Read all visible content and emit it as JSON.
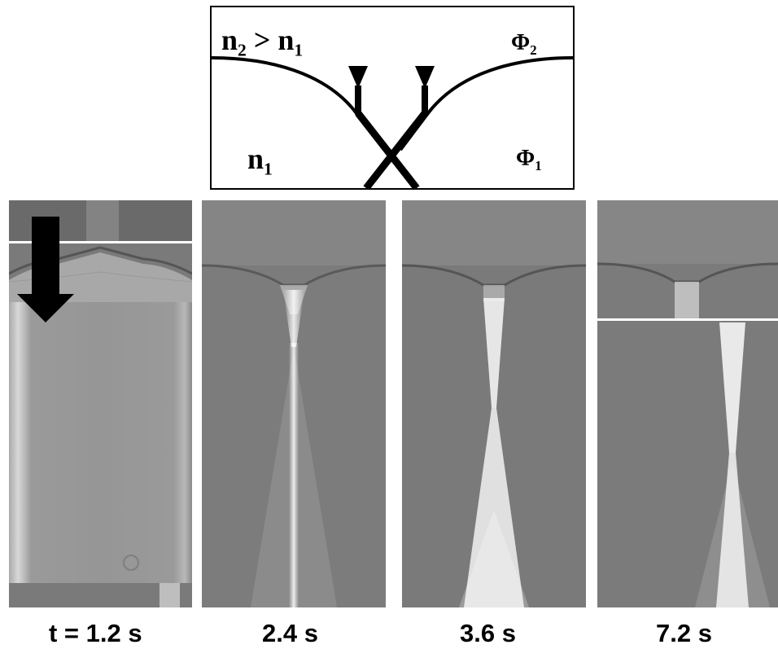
{
  "schematic": {
    "label_top_left": {
      "main": "n",
      "sub1": "2",
      "op": " > n",
      "sub2": "1"
    },
    "label_bottom_left": {
      "main": "n",
      "sub": "1"
    },
    "label_top_right": {
      "main": "Φ",
      "sub": "2"
    },
    "label_bottom_right": {
      "main": "Φ",
      "sub": "1"
    }
  },
  "panels": [
    {
      "caption": "t = 1.2 s"
    },
    {
      "caption": "2.4 s"
    },
    {
      "caption": "3.6 s"
    },
    {
      "caption": "7.2 s"
    }
  ],
  "colors": {
    "ink": "#000000",
    "background": "#ffffff",
    "gray_medium": "#6e6e6e"
  }
}
